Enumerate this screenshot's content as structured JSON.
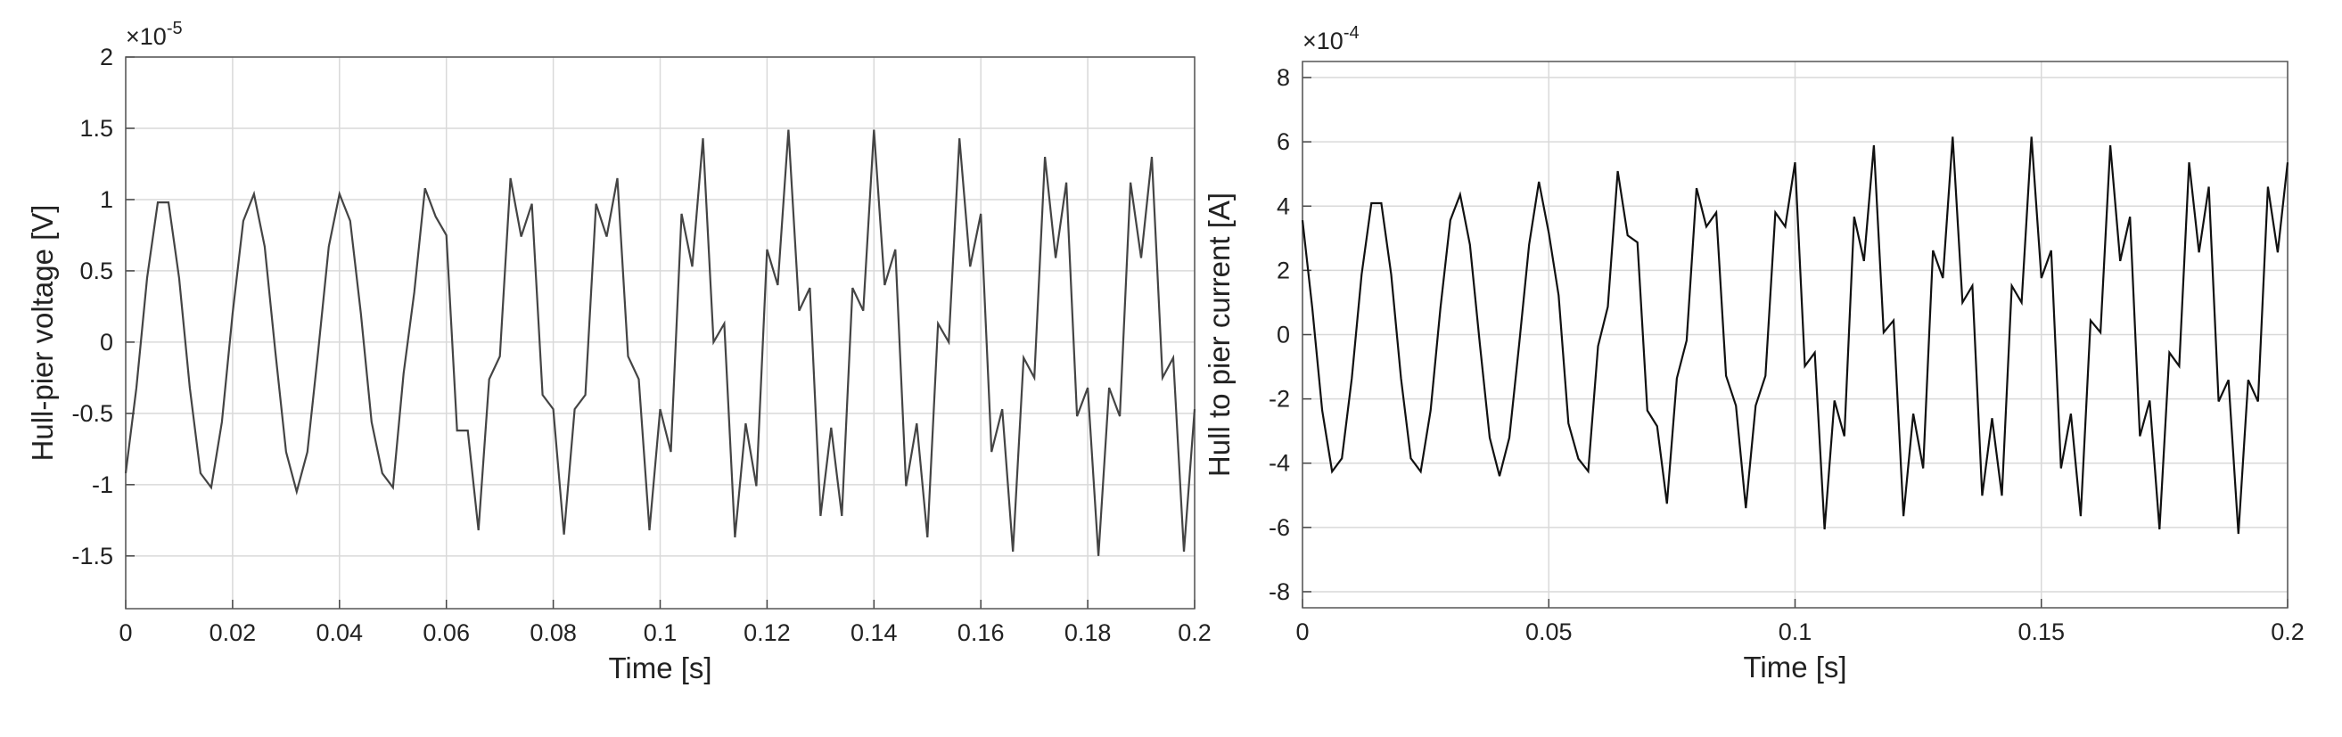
{
  "chart_data": [
    {
      "type": "line",
      "xlabel": "Time [s]",
      "ylabel": "Hull-pier voltage [V]",
      "y_multiplier": {
        "base": "×10",
        "exponent": "-5"
      },
      "xlim": [
        0,
        0.2
      ],
      "ylim": [
        -1.87,
        2
      ],
      "xticks": [
        0,
        0.02,
        0.04,
        0.06,
        0.08,
        0.1,
        0.12,
        0.14,
        0.16,
        0.18,
        0.2
      ],
      "yticks": [
        -1.5,
        -1,
        -0.5,
        0,
        0.5,
        1,
        1.5,
        2
      ],
      "grid": true,
      "x": [
        0,
        0.002,
        0.004,
        0.006,
        0.008,
        0.01,
        0.012,
        0.014,
        0.016,
        0.018,
        0.02,
        0.022,
        0.024,
        0.026,
        0.028,
        0.03,
        0.032,
        0.034,
        0.036,
        0.038,
        0.04,
        0.042,
        0.044,
        0.046,
        0.048,
        0.05,
        0.052,
        0.054,
        0.056,
        0.058,
        0.06,
        0.062,
        0.064,
        0.066,
        0.068,
        0.07,
        0.072,
        0.074,
        0.076,
        0.078,
        0.08,
        0.082,
        0.084,
        0.086,
        0.088,
        0.09,
        0.092,
        0.094,
        0.096,
        0.098,
        0.1,
        0.102,
        0.104,
        0.106,
        0.108,
        0.11,
        0.112,
        0.114,
        0.116,
        0.118,
        0.12,
        0.122,
        0.124,
        0.126,
        0.128,
        0.13,
        0.132,
        0.134,
        0.136,
        0.138,
        0.14,
        0.142,
        0.144,
        0.146,
        0.148,
        0.15,
        0.152,
        0.154,
        0.156,
        0.158,
        0.16,
        0.162,
        0.164,
        0.166,
        0.168,
        0.17,
        0.172,
        0.174,
        0.176,
        0.178,
        0.18,
        0.182,
        0.184,
        0.186,
        0.188,
        0.19,
        0.192,
        0.194,
        0.196,
        0.198,
        0.2
      ],
      "series": [
        {
          "color": "#444444",
          "values": [
            -0.92,
            -0.32,
            0.45,
            0.98,
            0.98,
            0.45,
            -0.32,
            -0.92,
            -1.02,
            -0.56,
            0.2,
            0.85,
            1.04,
            0.67,
            -0.07,
            -0.77,
            -1.05,
            -0.77,
            -0.07,
            0.67,
            1.04,
            0.85,
            0.2,
            -0.56,
            -0.92,
            -1.02,
            -0.22,
            0.35,
            1.08,
            0.88,
            0.75,
            -0.62,
            -0.62,
            -1.32,
            -0.26,
            -0.1,
            1.15,
            0.74,
            0.97,
            -0.37,
            -0.47,
            -1.35,
            -0.47,
            -0.37,
            0.97,
            0.74,
            1.15,
            -0.1,
            -0.26,
            -1.32,
            -0.47,
            -0.77,
            0.9,
            0.53,
            1.43,
            0,
            0.13,
            -1.37,
            -0.57,
            -1.01,
            0.65,
            0.4,
            1.49,
            0.22,
            0.38,
            -1.22,
            -0.6,
            -1.22,
            0.38,
            0.22,
            1.49,
            0.4,
            0.65,
            -1.01,
            -0.57,
            -1.37,
            0.13,
            0,
            1.43,
            0.53,
            0.9,
            -0.77,
            -0.47,
            -1.47,
            -0.11,
            -0.25,
            1.3,
            0.59,
            1.12,
            -0.52,
            -0.32,
            -1.5,
            -0.32,
            -0.52,
            1.12,
            0.59,
            1.3,
            -0.25,
            -0.11,
            -1.47,
            -0.47
          ]
        }
      ]
    },
    {
      "type": "line",
      "xlabel": "Time [s]",
      "ylabel": "Hull to pier current [A]",
      "y_multiplier": {
        "base": "×10",
        "exponent": "-4"
      },
      "xlim": [
        0,
        0.2
      ],
      "ylim": [
        -8.5,
        8.5
      ],
      "xticks": [
        0,
        0.05,
        0.1,
        0.15,
        0.2
      ],
      "yticks": [
        -8,
        -6,
        -4,
        -2,
        0,
        2,
        4,
        6,
        8
      ],
      "grid": true,
      "x": [
        0,
        0.002,
        0.004,
        0.006,
        0.008,
        0.01,
        0.012,
        0.014,
        0.016,
        0.018,
        0.02,
        0.022,
        0.024,
        0.026,
        0.028,
        0.03,
        0.032,
        0.034,
        0.036,
        0.038,
        0.04,
        0.042,
        0.044,
        0.046,
        0.048,
        0.05,
        0.052,
        0.054,
        0.056,
        0.058,
        0.06,
        0.062,
        0.064,
        0.066,
        0.068,
        0.07,
        0.072,
        0.074,
        0.076,
        0.078,
        0.08,
        0.082,
        0.084,
        0.086,
        0.088,
        0.09,
        0.092,
        0.094,
        0.096,
        0.098,
        0.1,
        0.102,
        0.104,
        0.106,
        0.108,
        0.11,
        0.112,
        0.114,
        0.116,
        0.118,
        0.12,
        0.122,
        0.124,
        0.126,
        0.128,
        0.13,
        0.132,
        0.134,
        0.136,
        0.138,
        0.14,
        0.142,
        0.144,
        0.146,
        0.148,
        0.15,
        0.152,
        0.154,
        0.156,
        0.158,
        0.16,
        0.162,
        0.164,
        0.166,
        0.168,
        0.17,
        0.172,
        0.174,
        0.176,
        0.178,
        0.18,
        0.182,
        0.184,
        0.186,
        0.188,
        0.19,
        0.192,
        0.194,
        0.196,
        0.198,
        0.2
      ],
      "series": [
        {
          "color": "#111111",
          "values": [
            3.56,
            0.82,
            -2.36,
            -4.26,
            -3.85,
            -1.36,
            1.87,
            4.09,
            4.09,
            1.87,
            -1.36,
            -3.85,
            -4.26,
            -2.36,
            0.82,
            3.56,
            4.36,
            2.8,
            -0.28,
            -3.21,
            -4.4,
            -3.21,
            -0.28,
            2.8,
            4.76,
            3.16,
            1.22,
            -2.76,
            -3.86,
            -4.25,
            -0.36,
            0.87,
            5.09,
            3.09,
            2.87,
            -2.36,
            -2.85,
            -5.26,
            -1.36,
            -0.18,
            4.56,
            3.36,
            3.8,
            -1.28,
            -2.21,
            -5.4,
            -2.21,
            -1.28,
            3.8,
            3.36,
            5.36,
            -0.98,
            -0.56,
            -6.06,
            -2.05,
            -3.16,
            3.67,
            2.29,
            5.89,
            0.07,
            0.44,
            -5.65,
            -2.46,
            -4.16,
            2.62,
            1.76,
            6.16,
            1,
            1.52,
            -5.01,
            -2.6,
            -5.01,
            1.52,
            1,
            6.16,
            1.76,
            2.62,
            -4.16,
            -2.46,
            -5.65,
            0.44,
            0.07,
            5.89,
            2.29,
            3.67,
            -3.16,
            -2.05,
            -6.06,
            -0.56,
            -0.98,
            5.36,
            2.56,
            4.6,
            -2.08,
            -1.41,
            -6.2,
            -1.41,
            -2.08,
            4.6,
            2.56,
            5.36
          ]
        }
      ]
    }
  ]
}
